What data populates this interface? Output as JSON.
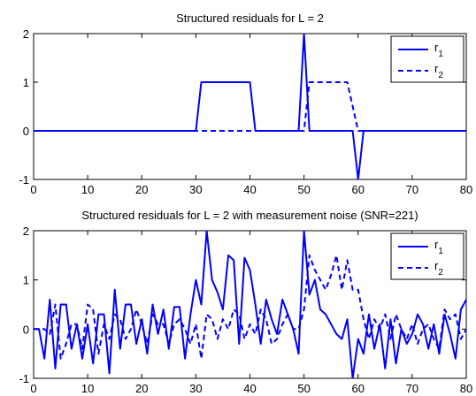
{
  "colors": {
    "series": "#0000ff",
    "axes": "#000000",
    "background": "#ffffff"
  },
  "chart_data": [
    {
      "type": "line",
      "title": "Structured residuals for L = 2",
      "xlabel": "",
      "ylabel": "",
      "xlim": [
        0,
        80
      ],
      "ylim": [
        -1,
        2
      ],
      "xticks": [
        "0",
        "10",
        "20",
        "30",
        "40",
        "50",
        "60",
        "70",
        "80"
      ],
      "yticks": [
        "-1",
        "0",
        "1",
        "2"
      ],
      "grid": false,
      "legend_position": "top-right",
      "series": [
        {
          "name": "r",
          "name_subscript": "1",
          "line_style": "solid",
          "x": [
            0,
            30,
            31,
            40,
            41,
            49,
            50,
            51,
            59,
            60,
            61,
            80
          ],
          "y": [
            0,
            0,
            1,
            1,
            0,
            0,
            2,
            0,
            0,
            -1,
            0,
            0
          ]
        },
        {
          "name": "r",
          "name_subscript": "2",
          "line_style": "dashed",
          "x": [
            0,
            50,
            51,
            58,
            60,
            61,
            80
          ],
          "y": [
            0,
            0,
            1,
            1,
            0,
            0,
            0
          ]
        }
      ]
    },
    {
      "type": "line",
      "title": "Structured residuals for L = 2 with measurement noise (SNR=221)",
      "xlabel": "",
      "ylabel": "",
      "xlim": [
        0,
        80
      ],
      "ylim": [
        -1,
        2
      ],
      "xticks": [
        "0",
        "10",
        "20",
        "30",
        "40",
        "50",
        "60",
        "70",
        "80"
      ],
      "yticks": [
        "-1",
        "0",
        "1",
        "2"
      ],
      "grid": false,
      "legend_position": "top-right",
      "series": [
        {
          "name": "r",
          "name_subscript": "1",
          "line_style": "solid",
          "x": [
            0,
            1,
            2,
            3,
            4,
            5,
            6,
            7,
            8,
            9,
            10,
            11,
            12,
            13,
            14,
            15,
            16,
            17,
            18,
            19,
            20,
            21,
            22,
            23,
            24,
            25,
            26,
            27,
            28,
            29,
            30,
            31,
            32,
            33,
            34,
            35,
            36,
            37,
            38,
            39,
            40,
            41,
            42,
            43,
            44,
            45,
            46,
            47,
            48,
            49,
            50,
            51,
            52,
            53,
            54,
            55,
            56,
            57,
            58,
            59,
            60,
            61,
            62,
            63,
            64,
            65,
            66,
            67,
            68,
            69,
            70,
            71,
            72,
            73,
            74,
            75,
            76,
            77,
            78,
            79,
            80
          ],
          "y": [
            0,
            0,
            -0.6,
            0.6,
            -0.8,
            0.5,
            0.5,
            -0.4,
            0.1,
            -0.6,
            0.1,
            -0.7,
            0.3,
            0.3,
            -0.9,
            0.8,
            -0.4,
            0.5,
            0.5,
            -0.3,
            0.2,
            -0.5,
            0.5,
            -0.1,
            0.4,
            -0.4,
            0.45,
            0.45,
            -0.6,
            0.3,
            1.0,
            0.5,
            2.0,
            1.0,
            0.75,
            0.4,
            1.5,
            1.4,
            -0.3,
            1.45,
            1.2,
            0.5,
            -0.3,
            0.6,
            0.2,
            -0.1,
            0.6,
            0.3,
            0.0,
            -0.5,
            2.0,
            0.7,
            1.0,
            0.4,
            0.3,
            0.1,
            -0.1,
            -0.2,
            0.2,
            -1.0,
            -0.2,
            -0.5,
            0.3,
            -0.4,
            0.1,
            -0.8,
            0.2,
            -0.7,
            0.0,
            -0.3,
            -0.1,
            0.3,
            0.1,
            -0.4,
            0.1,
            -0.5,
            0.3,
            -0.1,
            -0.6,
            0.4,
            0.6
          ]
        },
        {
          "name": "r",
          "name_subscript": "2",
          "line_style": "dashed",
          "x": [
            0,
            1,
            2,
            3,
            4,
            5,
            6,
            7,
            8,
            9,
            10,
            11,
            12,
            13,
            14,
            15,
            16,
            17,
            18,
            19,
            20,
            21,
            22,
            23,
            24,
            25,
            26,
            27,
            28,
            29,
            30,
            31,
            32,
            33,
            34,
            35,
            36,
            37,
            38,
            39,
            40,
            41,
            42,
            43,
            44,
            45,
            46,
            47,
            48,
            49,
            50,
            51,
            52,
            53,
            54,
            55,
            56,
            57,
            58,
            59,
            60,
            61,
            62,
            63,
            64,
            65,
            66,
            67,
            68,
            69,
            70,
            71,
            72,
            73,
            74,
            75,
            76,
            77,
            78,
            79,
            80
          ],
          "y": [
            0,
            0,
            0,
            -0.1,
            0.5,
            -0.6,
            -0.3,
            0.1,
            0.1,
            -0.4,
            0.5,
            0.4,
            -0.5,
            0.1,
            -0.2,
            0.3,
            0.2,
            -0.2,
            0.0,
            0.4,
            0.1,
            -0.3,
            0.3,
            0.1,
            0.1,
            -0.3,
            0.1,
            0.2,
            0.0,
            -0.3,
            0.1,
            -0.6,
            0.3,
            0.2,
            -0.2,
            0.2,
            0.0,
            0.4,
            0.3,
            -0.2,
            0.1,
            -0.1,
            0.4,
            0.2,
            -0.3,
            -0.2,
            0.1,
            0.3,
            0.0,
            0.0,
            0.4,
            1.5,
            1.2,
            1.0,
            0.8,
            1.1,
            1.5,
            0.8,
            1.4,
            0.8,
            0.8,
            0.2,
            -0.2,
            0.2,
            0.0,
            0.3,
            -0.2,
            0.3,
            0.0,
            -0.2,
            0.1,
            -0.3,
            0.0,
            0.1,
            -0.2,
            -0.4,
            0.4,
            0.2,
            0.3,
            -0.2,
            0.0
          ]
        }
      ]
    }
  ]
}
